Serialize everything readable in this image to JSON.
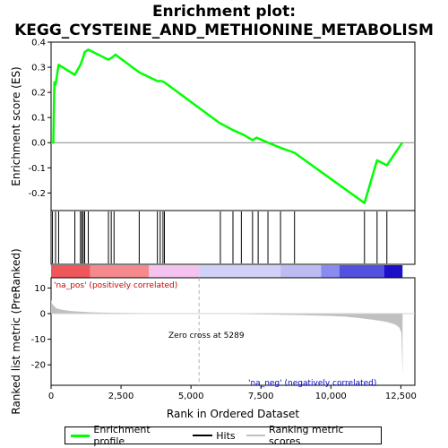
{
  "chart_data": {
    "type": "line",
    "title": "Enrichment plot: KEGG_CYSTEINE_AND_METHIONINE_METABOLISM",
    "top_panel": {
      "ylabel": "Enrichment score (ES)",
      "ylim": [
        -0.27,
        0.4
      ],
      "yticks": [
        "-0.2",
        "-0.1",
        "0.0",
        "0.1",
        "0.2",
        "0.3",
        "0.4"
      ],
      "ytick_values": [
        -0.2,
        -0.1,
        0.0,
        0.1,
        0.2,
        0.3,
        0.4
      ],
      "grid": false,
      "series": [
        {
          "name": "Enrichment profile",
          "color": "#00ff00",
          "x": [
            0,
            80,
            120,
            160,
            270,
            850,
            1050,
            1150,
            1200,
            1330,
            2050,
            2200,
            2300,
            3150,
            3800,
            3950,
            4050,
            6000,
            6500,
            6900,
            7200,
            7350,
            7750,
            8200,
            8700,
            11200,
            11650,
            12000,
            12550
          ],
          "y": [
            0.0,
            0.0,
            0.24,
            0.23,
            0.31,
            0.27,
            0.31,
            0.34,
            0.36,
            0.37,
            0.33,
            0.34,
            0.35,
            0.28,
            0.245,
            0.245,
            0.24,
            0.08,
            0.05,
            0.03,
            0.01,
            0.02,
            0.0,
            -0.02,
            -0.04,
            -0.24,
            -0.07,
            -0.09,
            0.0
          ]
        }
      ],
      "hits": [
        50,
        160,
        270,
        850,
        1050,
        1100,
        1150,
        1200,
        1330,
        2050,
        2150,
        2250,
        3150,
        3800,
        3900,
        4000,
        4050,
        6050,
        6500,
        6800,
        7200,
        7400,
        7750,
        8200,
        8700,
        11200,
        11650,
        12000
      ]
    },
    "bottom_panel": {
      "xlabel": "Rank in Ordered Dataset",
      "ylabel": "Ranked list metric (PreRanked)",
      "xlim": [
        0,
        13000
      ],
      "ylim": [
        -28,
        14
      ],
      "xticks": [
        "0",
        "2,500",
        "5,000",
        "7,500",
        "10,000",
        "12,500"
      ],
      "xtick_values": [
        0,
        2500,
        5000,
        7500,
        10000,
        12500
      ],
      "yticks": [
        "10",
        "0",
        "-10",
        "-20"
      ],
      "ytick_values": [
        10,
        0,
        -10,
        -20
      ],
      "metric_x": [
        0,
        30,
        100,
        200,
        400,
        700,
        1000,
        1500,
        2000,
        3000,
        4000,
        5289,
        6000,
        7000,
        8000,
        9000,
        10000,
        10500,
        11000,
        11500,
        11800,
        12000,
        12200,
        12350,
        12450,
        12520,
        12560
      ],
      "metric_y": [
        5.5,
        4.0,
        3.0,
        2.0,
        1.5,
        1.0,
        0.8,
        0.5,
        0.35,
        0.2,
        0.1,
        0.0,
        -0.1,
        -0.2,
        -0.4,
        -0.6,
        -0.9,
        -1.2,
        -1.7,
        -2.4,
        -2.9,
        -3.3,
        -3.9,
        -4.6,
        -5.5,
        -7.5,
        -25
      ],
      "zero_cross": 5289,
      "annotations": {
        "pos": "'na_pos' (positively correlated)",
        "neg": "'na_neg' (negatively correlated)",
        "zero": "Zero cross at 5289"
      },
      "heat_segments": [
        {
          "from": 0,
          "to": 1400,
          "color": "#f0575a"
        },
        {
          "from": 1400,
          "to": 3500,
          "color": "#f58a8e"
        },
        {
          "from": 3500,
          "to": 5289,
          "color": "#f5c3f0"
        },
        {
          "from": 5289,
          "to": 8200,
          "color": "#d0d0f8"
        },
        {
          "from": 8200,
          "to": 9650,
          "color": "#bcbcf2"
        },
        {
          "from": 9650,
          "to": 10300,
          "color": "#8a8af0"
        },
        {
          "from": 10300,
          "to": 11900,
          "color": "#5252e0"
        },
        {
          "from": 11900,
          "to": 12560,
          "color": "#1c10c8"
        }
      ]
    },
    "legend": [
      {
        "label": "Enrichment profile",
        "color": "#00ff00"
      },
      {
        "label": "Hits",
        "color": "#000000"
      },
      {
        "label": "Ranking metric scores",
        "color": "#c0c0c0"
      }
    ]
  }
}
